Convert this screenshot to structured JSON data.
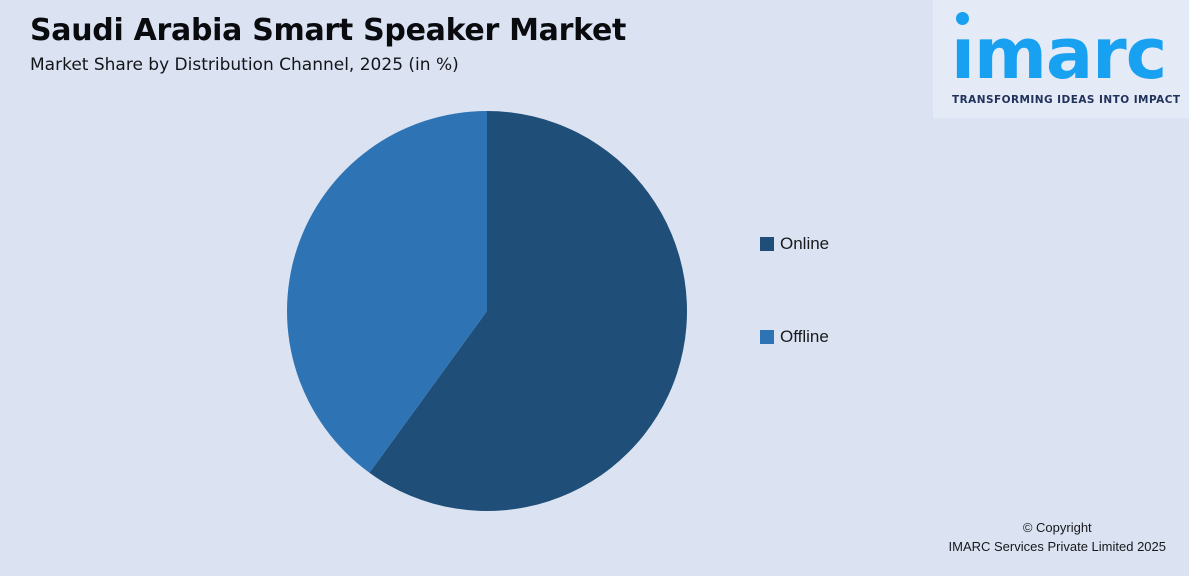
{
  "page": {
    "background": "#dbe3f2",
    "title": "Saudi Arabia Smart Speaker Market",
    "subtitle": "Market Share by Distribution Channel, 2025 (in %)"
  },
  "logo": {
    "wordmark": "imarc",
    "tagline": "TRANSFORMING IDEAS INTO IMPACT",
    "blue": "#18a0f1",
    "navy": "#21325b",
    "panel": "#e5eaf7"
  },
  "chart_data": {
    "type": "pie",
    "title": "Saudi Arabia Smart Speaker Market",
    "subtitle": "Market Share by Distribution Channel, 2025 (in %)",
    "categories": [
      "Online",
      "Offline"
    ],
    "values": [
      60,
      40
    ],
    "unit": "%",
    "colors": [
      "#1f4e78",
      "#2e74b5"
    ],
    "start_angle_deg": 0,
    "direction": "clockwise",
    "legend_position": "right",
    "data_labels": "none"
  },
  "legend": {
    "items": [
      {
        "label": "Online",
        "color": "#1f4e78"
      },
      {
        "label": "Offline",
        "color": "#2e74b5"
      }
    ]
  },
  "footer": {
    "line1": "© Copyright",
    "line2": "IMARC Services Private Limited 2025"
  }
}
